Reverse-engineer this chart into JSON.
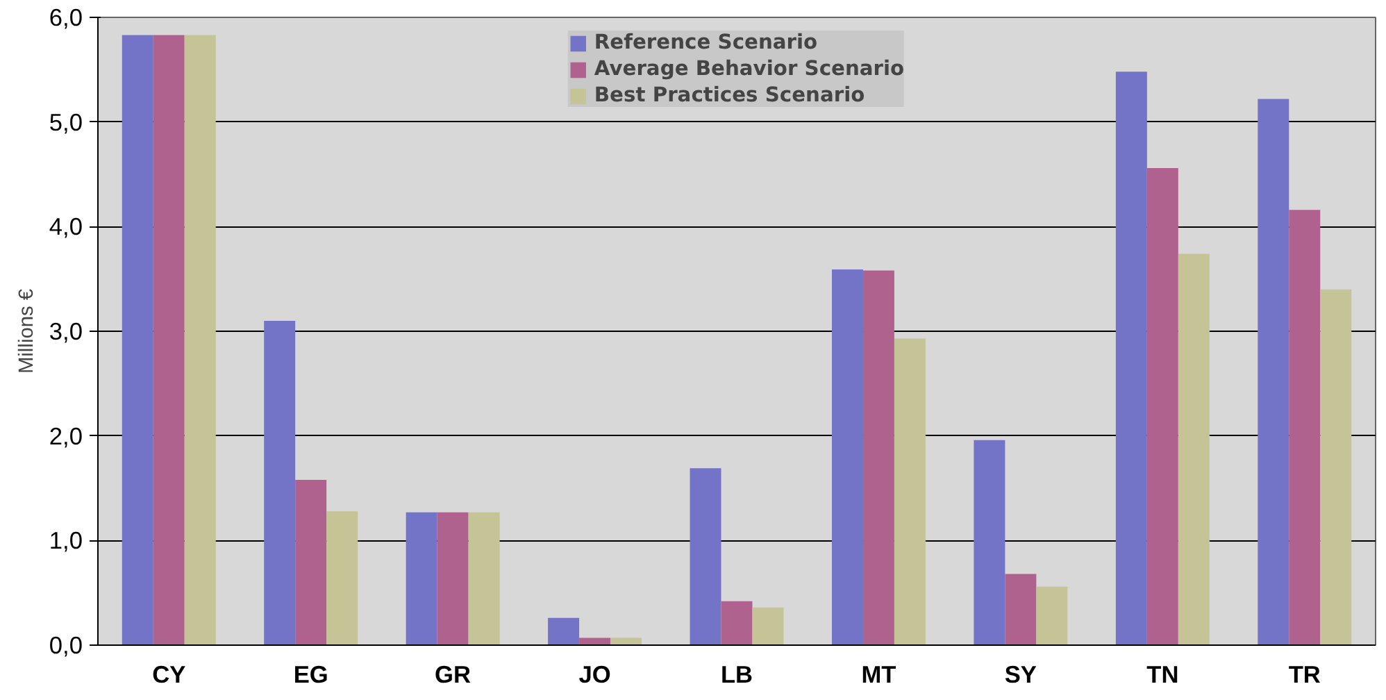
{
  "chart_data": {
    "type": "bar",
    "ylabel": "Millions €",
    "categories": [
      "CY",
      "EG",
      "GR",
      "JO",
      "LB",
      "MT",
      "SY",
      "TN",
      "TR"
    ],
    "series": [
      {
        "name": "Reference Scenario",
        "color": "#7373c8",
        "values": [
          5.83,
          3.1,
          1.27,
          0.26,
          1.69,
          3.59,
          1.96,
          5.48,
          5.22
        ]
      },
      {
        "name": "Average Behavior Scenario",
        "color": "#b0628e",
        "values": [
          5.83,
          1.58,
          1.27,
          0.07,
          0.42,
          3.58,
          0.68,
          4.56,
          4.16
        ]
      },
      {
        "name": "Best Practices Scenario",
        "color": "#c4c496",
        "values": [
          5.83,
          1.28,
          1.27,
          0.07,
          0.36,
          2.93,
          0.56,
          3.74,
          3.4
        ]
      }
    ],
    "ylim": [
      0,
      6
    ],
    "yticks": [
      {
        "value": 0,
        "label": "0,0"
      },
      {
        "value": 1,
        "label": "1,0"
      },
      {
        "value": 2,
        "label": "2,0"
      },
      {
        "value": 3,
        "label": "3,0"
      },
      {
        "value": 4,
        "label": "4,0"
      },
      {
        "value": 5,
        "label": "5,0"
      },
      {
        "value": 6,
        "label": "6,0"
      }
    ],
    "grid": "y",
    "legend": "top"
  }
}
